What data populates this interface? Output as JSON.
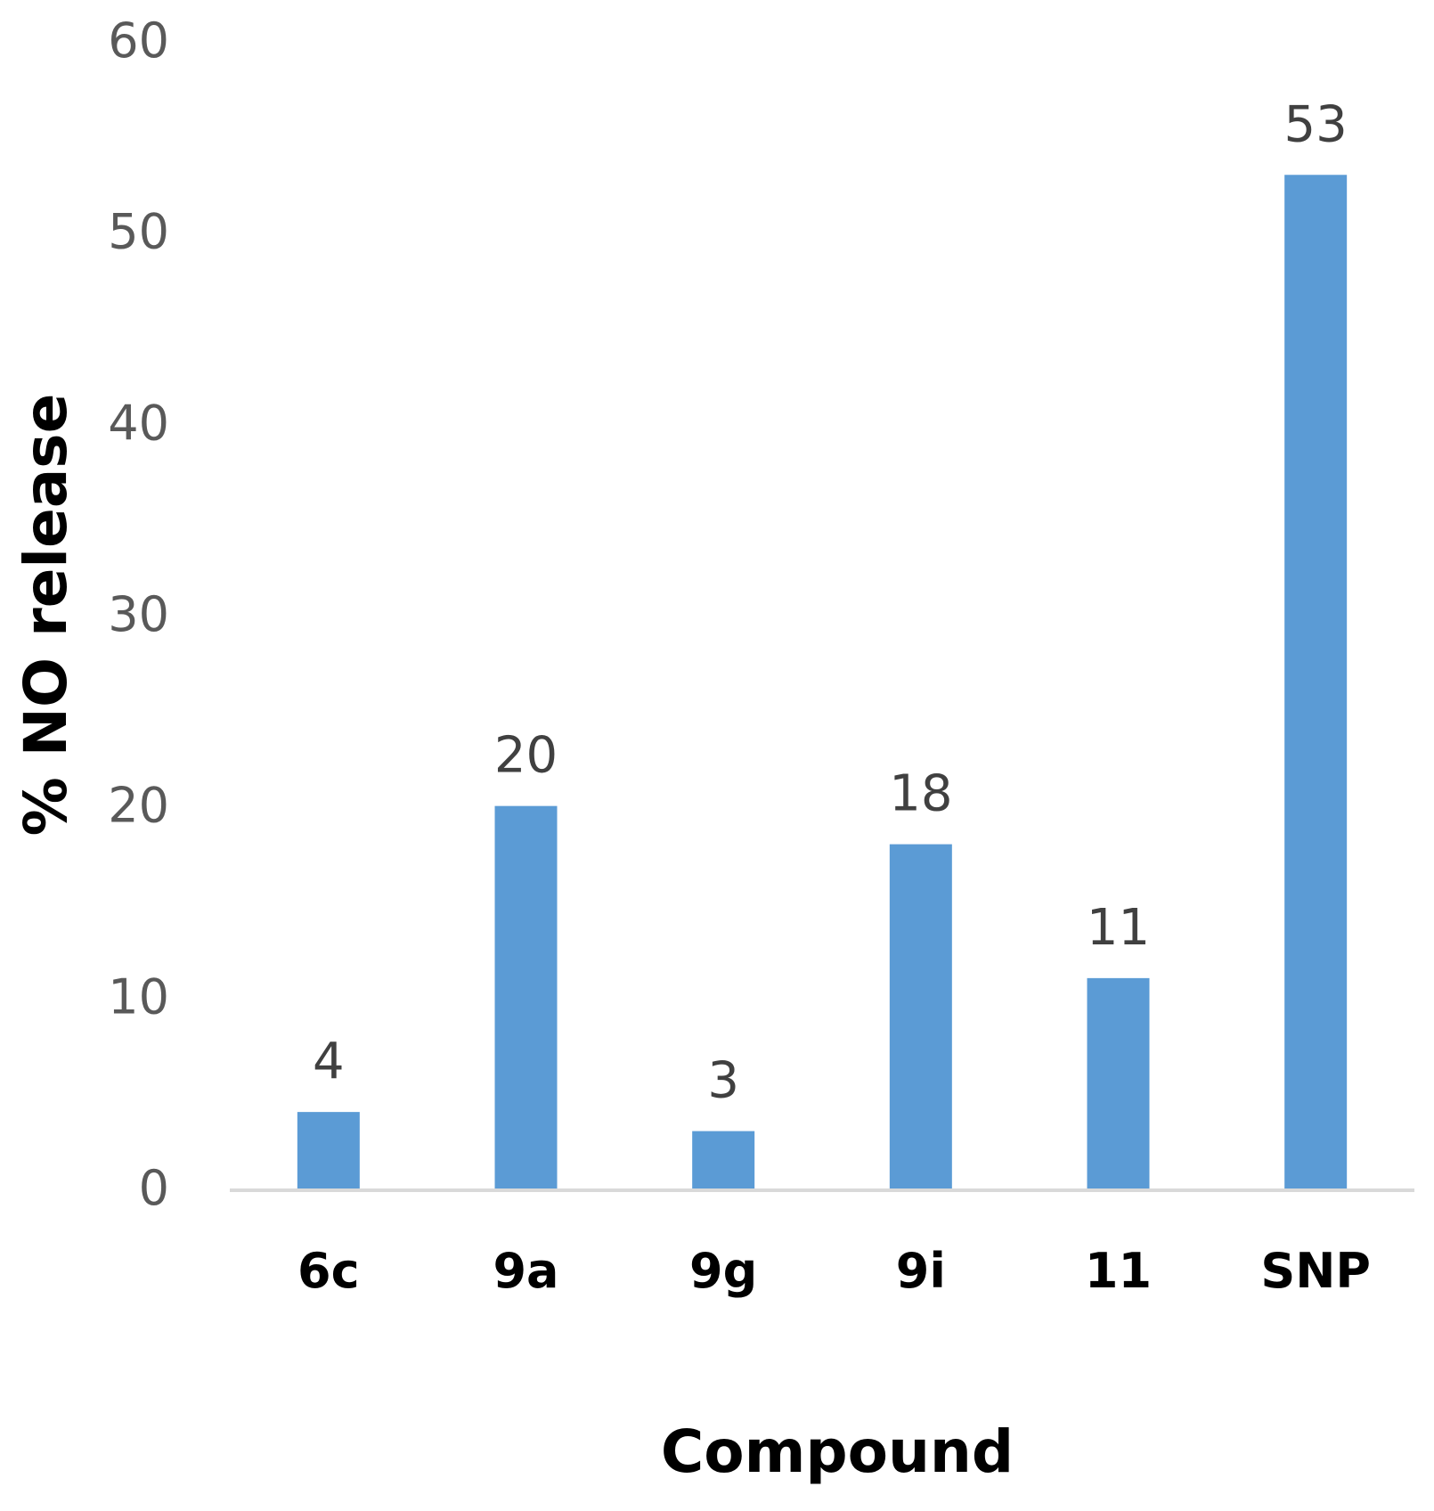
{
  "chart_data": {
    "type": "bar",
    "categories": [
      "6c",
      "9a",
      "9g",
      "9i",
      "11",
      "SNP"
    ],
    "values": [
      4,
      20,
      3,
      18,
      11,
      53
    ],
    "data_labels": [
      "4",
      "20",
      "3",
      "18",
      "11",
      "53"
    ],
    "xlabel": "Compound",
    "ylabel": "% NO release",
    "ylim": [
      0,
      60
    ],
    "yticks": [
      0,
      10,
      20,
      30,
      40,
      50,
      60
    ],
    "ytick_labels": [
      "0",
      "10",
      "20",
      "30",
      "40",
      "50",
      "60"
    ],
    "grid": false,
    "legend": "none",
    "bar_color": "#5B9BD5",
    "axis_color": "#D9D9D9"
  }
}
